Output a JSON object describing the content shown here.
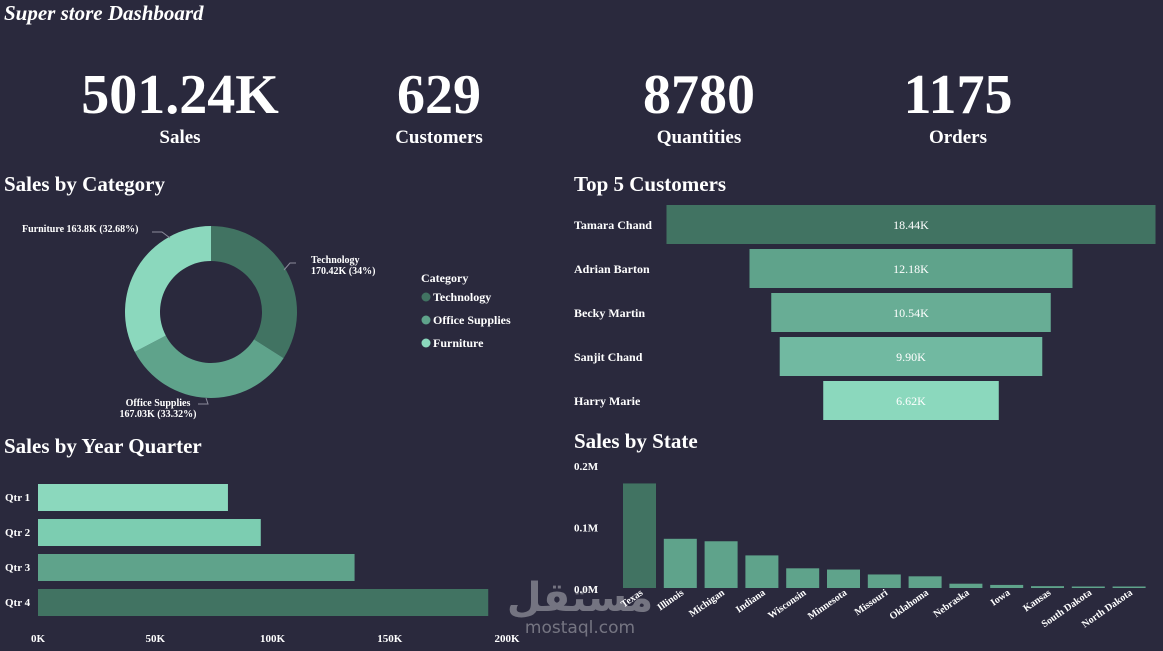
{
  "dashboard": {
    "title": "Super store Dashboard"
  },
  "kpis": [
    {
      "value": "501.24K",
      "label": "Sales"
    },
    {
      "value": "629",
      "label": "Customers"
    },
    {
      "value": "8780",
      "label": "Quantities"
    },
    {
      "value": "1175",
      "label": "Orders"
    }
  ],
  "colors": {
    "background": "#2a293d",
    "technology": "#417362",
    "office_supplies": "#5fa38b",
    "furniture": "#8bd8bd"
  },
  "watermark": {
    "logo_text": "مستقل",
    "site": "mostaql.com"
  },
  "chart_data": [
    {
      "type": "pie",
      "title": "Sales by Category",
      "legend_title": "Category",
      "legend_position": "right",
      "slices": [
        {
          "name": "Technology",
          "value": 170.42,
          "label_lines": [
            "Technology",
            "170.42K (34%)"
          ],
          "color": "#417362"
        },
        {
          "name": "Office Supplies",
          "value": 167.03,
          "label_lines": [
            "Office Supplies",
            "167.03K (33.32%)"
          ],
          "color": "#5fa38b"
        },
        {
          "name": "Furniture",
          "value": 163.8,
          "label_lines": [
            "Furniture 163.8K (32.68%)"
          ],
          "color": "#8bd8bd"
        }
      ]
    },
    {
      "type": "bar",
      "title": "Top 5 Customers",
      "orientation": "funnel",
      "categories": [
        "Tamara Chand",
        "Adrian Barton",
        "Becky Martin",
        "Sanjit Chand",
        "Harry Marie"
      ],
      "values": [
        18.44,
        12.18,
        10.54,
        9.9,
        6.62
      ],
      "data_labels": [
        "18.44K",
        "12.18K",
        "10.54K",
        "9.90K",
        "6.62K"
      ],
      "colors": [
        "#417362",
        "#5fa38b",
        "#68ad95",
        "#71b9a1",
        "#8bd8bd"
      ]
    },
    {
      "type": "bar",
      "title": "Sales by Year Quarter",
      "orientation": "horizontal",
      "categories": [
        "Qtr 1",
        "Qtr 2",
        "Qtr 3",
        "Qtr 4"
      ],
      "values": [
        81,
        95,
        135,
        192
      ],
      "colors": [
        "#8bd8bd",
        "#7ccdb1",
        "#5fa38b",
        "#417362"
      ],
      "xticks": [
        "0K",
        "50K",
        "100K",
        "150K",
        "200K"
      ],
      "xlim": [
        0,
        200
      ]
    },
    {
      "type": "bar",
      "title": "Sales by State",
      "categories": [
        "Texas",
        "Illinois",
        "Michigan",
        "Indiana",
        "Wisconsin",
        "Minnesota",
        "Missouri",
        "Oklahoma",
        "Nebraska",
        "Iowa",
        "Kansas",
        "South Dakota",
        "North Dakota"
      ],
      "values": [
        0.17,
        0.08,
        0.076,
        0.053,
        0.032,
        0.03,
        0.022,
        0.019,
        0.007,
        0.005,
        0.003,
        0.002,
        0.002
      ],
      "yticks": [
        "0.2M",
        "0.1M",
        "0.0M"
      ],
      "ylim": [
        0,
        0.2
      ],
      "highlight_color": "#417362",
      "bar_color": "#5fa38b"
    }
  ]
}
